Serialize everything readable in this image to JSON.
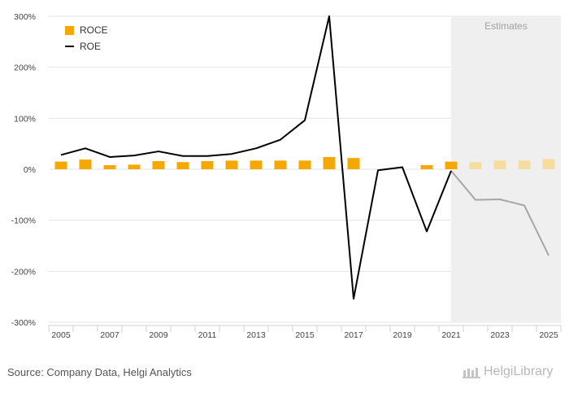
{
  "chart_data": {
    "type": "bar+line",
    "title": "",
    "estimates_label": "Estimates",
    "estimates_from": 2022,
    "categories": [
      2005,
      2006,
      2007,
      2008,
      2009,
      2010,
      2011,
      2012,
      2013,
      2014,
      2015,
      2016,
      2017,
      2018,
      2019,
      2020,
      2021,
      2022,
      2023,
      2024,
      2025
    ],
    "x_tick_labels": [
      "2005",
      "2007",
      "2009",
      "2011",
      "2013",
      "2015",
      "2017",
      "2019",
      "2021",
      "2023",
      "2025"
    ],
    "y_tick_labels": [
      "300%",
      "200%",
      "100%",
      "0%",
      "-100%",
      "-200%",
      "-300%"
    ],
    "ylim": [
      -300,
      300
    ],
    "series": [
      {
        "name": "ROCE",
        "type": "bar",
        "color": "#f5a800",
        "estimate_color": "#f7dca0",
        "values": [
          15,
          19,
          8,
          9,
          16,
          14,
          16,
          17,
          17,
          17,
          17,
          24,
          22,
          0,
          0,
          8,
          15,
          14,
          17,
          17,
          20
        ]
      },
      {
        "name": "ROE",
        "type": "line",
        "color": "#000000",
        "estimate_color": "#a6a6a6",
        "values": [
          28,
          41,
          24,
          27,
          35,
          26,
          26,
          30,
          41,
          58,
          96,
          300,
          -254,
          -2,
          4,
          -122,
          -3,
          -60,
          -59,
          -71,
          -169
        ]
      }
    ]
  },
  "legend": {
    "roce": "ROCE",
    "roe": "ROE"
  },
  "footer": {
    "source": "Source: Company Data, Helgi Analytics",
    "brand": "HelgiLibrary"
  }
}
